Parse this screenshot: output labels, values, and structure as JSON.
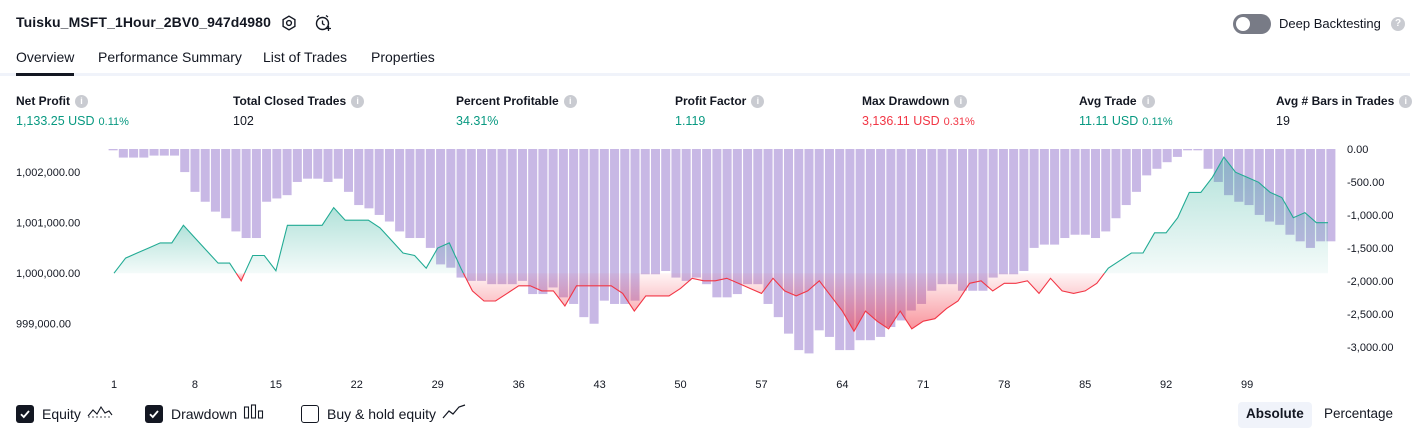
{
  "header": {
    "strategy_name": "Tuisku_MSFT_1Hour_2BV0_947d4980",
    "deep_backtesting_label": "Deep Backtesting",
    "deep_backtesting_enabled": false
  },
  "tabs": [
    {
      "label": "Overview",
      "active": true
    },
    {
      "label": "Performance Summary",
      "active": false
    },
    {
      "label": "List of Trades",
      "active": false
    },
    {
      "label": "Properties",
      "active": false
    }
  ],
  "metrics": [
    {
      "label": "Net Profit",
      "value": "1,133.25 USD",
      "pct": "0.11%",
      "color": "#089981"
    },
    {
      "label": "Total Closed Trades",
      "value": "102",
      "pct": "",
      "color": "#131722"
    },
    {
      "label": "Percent Profitable",
      "value": "34.31%",
      "pct": "",
      "color": "#089981"
    },
    {
      "label": "Profit Factor",
      "value": "1.119",
      "pct": "",
      "color": "#089981"
    },
    {
      "label": "Max Drawdown",
      "value": "3,136.11 USD",
      "pct": "0.31%",
      "color": "#f23645"
    },
    {
      "label": "Avg Trade",
      "value": "11.11 USD",
      "pct": "0.11%",
      "color": "#089981"
    },
    {
      "label": "Avg # Bars in Trades",
      "value": "19",
      "pct": "",
      "color": "#131722"
    }
  ],
  "chart_data": {
    "type": "line",
    "x_ticks": [
      "1",
      "8",
      "15",
      "22",
      "29",
      "36",
      "43",
      "50",
      "57",
      "64",
      "71",
      "78",
      "85",
      "92",
      "99"
    ],
    "left_axis": {
      "label": "",
      "ticks": [
        "1,002,000.00",
        "1,001,000.00",
        "1,000,000.00",
        "999,000.00"
      ],
      "tick_values": [
        1002000,
        1001000,
        1000000,
        999000
      ],
      "range": [
        998400,
        1002500
      ]
    },
    "right_axis": {
      "label": "",
      "ticks": [
        "0.00",
        "-500.00",
        "-1,000.00",
        "-1,500.00",
        "-2,000.00",
        "-2,500.00",
        "-3,000.00"
      ],
      "tick_values": [
        0,
        -500,
        -1000,
        -1500,
        -2000,
        -2500,
        -3000
      ],
      "range": [
        -3200,
        0
      ]
    },
    "series": [
      {
        "name": "Equity",
        "baseline": 1000000,
        "color_positive": "#22ab94",
        "color_negative": "#f23645",
        "values": [
          1000000,
          1000300,
          1000400,
          1000500,
          1000600,
          1000600,
          1000950,
          1000700,
          1000450,
          1000200,
          1000200,
          999850,
          1000350,
          1000350,
          1000050,
          1000950,
          1000950,
          1000950,
          1000950,
          1001300,
          1001050,
          1001050,
          1001050,
          1000900,
          1000650,
          1000400,
          1000350,
          1000100,
          1000500,
          1000600,
          1000100,
          999650,
          999450,
          999450,
          999600,
          999750,
          999750,
          999650,
          999650,
          999350,
          999750,
          999750,
          999750,
          999750,
          999600,
          999250,
          999550,
          999550,
          999550,
          999700,
          999900,
          999850,
          999850,
          999900,
          999800,
          999700,
          999600,
          999900,
          999650,
          999550,
          999650,
          999850,
          999550,
          999250,
          998850,
          999250,
          999050,
          998900,
          999250,
          998900,
          999050,
          999100,
          999300,
          999450,
          999800,
          999850,
          999650,
          999800,
          999800,
          999850,
          999600,
          999900,
          999650,
          999600,
          999650,
          999800,
          1000100,
          1000250,
          1000400,
          1000400,
          1000800,
          1000800,
          1001100,
          1001600,
          1001600,
          1001900,
          1002300,
          1002000,
          1001900,
          1001800,
          1001600,
          1001500,
          1001100,
          1001200,
          1001000,
          1001000
        ]
      },
      {
        "name": "Drawdown",
        "color": "#b39ddb",
        "values": [
          -20,
          -130,
          -130,
          -130,
          -100,
          -100,
          -100,
          -350,
          -650,
          -800,
          -950,
          -1050,
          -1250,
          -1350,
          -1350,
          -800,
          -750,
          -700,
          -500,
          -450,
          -450,
          -500,
          -450,
          -650,
          -850,
          -900,
          -1000,
          -1100,
          -1250,
          -1350,
          -1350,
          -1500,
          -1750,
          -1800,
          -1950,
          -2000,
          -2000,
          -2050,
          -2050,
          -2050,
          -2000,
          -2200,
          -2200,
          -2100,
          -2250,
          -2350,
          -2550,
          -2650,
          -2300,
          -2350,
          -2350,
          -2300,
          -1900,
          -1900,
          -1850,
          -1950,
          -2000,
          -1950,
          -2050,
          -2250,
          -2250,
          -2200,
          -2050,
          -2050,
          -2350,
          -2550,
          -2800,
          -3050,
          -3100,
          -2750,
          -2850,
          -3050,
          -3050,
          -2900,
          -2900,
          -2850,
          -2700,
          -2600,
          -2450,
          -2350,
          -2150,
          -2050,
          -2050,
          -2150,
          -2150,
          -2150,
          -1950,
          -1900,
          -1900,
          -1850,
          -1500,
          -1450,
          -1450,
          -1350,
          -1300,
          -1300,
          -1350,
          -1250,
          -1050,
          -850,
          -650,
          -400,
          -300,
          -200,
          -120,
          -20,
          -20,
          -300,
          -500,
          -700,
          -800,
          -850,
          -1000,
          -1100,
          -1150,
          -1300,
          -1400,
          -1500,
          -1400,
          -1400
        ]
      }
    ]
  },
  "legend": [
    {
      "label": "Equity",
      "checked": true,
      "icon": "equity-icon"
    },
    {
      "label": "Drawdown",
      "checked": true,
      "icon": "drawdown-icon"
    },
    {
      "label": "Buy & hold equity",
      "checked": false,
      "icon": "buy-hold-icon"
    }
  ],
  "view_modes": [
    {
      "label": "Absolute",
      "active": true
    },
    {
      "label": "Percentage",
      "active": false
    }
  ]
}
